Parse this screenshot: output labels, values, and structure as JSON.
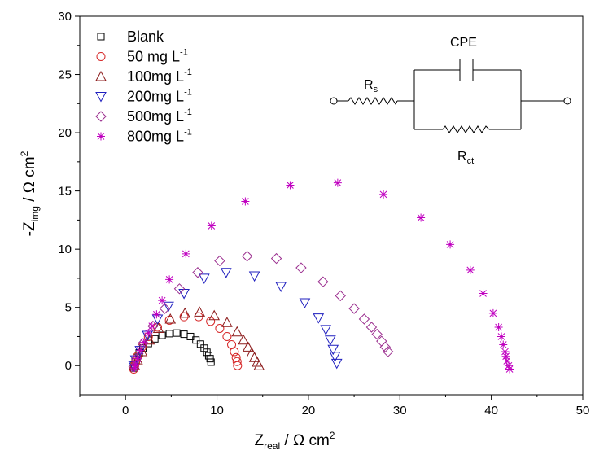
{
  "chart_data": {
    "type": "scatter",
    "title": "",
    "xlabel": {
      "main": "Z",
      "sub": "real",
      "unit": " / Ω cm",
      "sup": "2"
    },
    "ylabel": {
      "main": "-Z",
      "sub": "img",
      "unit": " / Ω cm",
      "sup": "2"
    },
    "xlim": [
      -5,
      50
    ],
    "ylim": [
      -2.5,
      30
    ],
    "xticks": [
      0,
      10,
      20,
      30,
      40,
      50
    ],
    "yticks": [
      0,
      5,
      10,
      15,
      20,
      25,
      30
    ],
    "grid": false,
    "legend_position": "top-left",
    "series": [
      {
        "name": "Blank",
        "unit": " L",
        "unit_sup": "",
        "marker": "square",
        "color": "#000000",
        "points": [
          [
            0.9,
            -0.2
          ],
          [
            0.95,
            0.1
          ],
          [
            1.05,
            0.35
          ],
          [
            1.2,
            0.7
          ],
          [
            1.5,
            1.1
          ],
          [
            1.9,
            1.5
          ],
          [
            2.5,
            1.9
          ],
          [
            3.2,
            2.3
          ],
          [
            4,
            2.6
          ],
          [
            4.8,
            2.75
          ],
          [
            5.6,
            2.8
          ],
          [
            6.4,
            2.7
          ],
          [
            7.1,
            2.5
          ],
          [
            7.7,
            2.2
          ],
          [
            8.2,
            1.85
          ],
          [
            8.6,
            1.5
          ],
          [
            8.9,
            1.15
          ],
          [
            9.1,
            0.85
          ],
          [
            9.25,
            0.6
          ],
          [
            9.35,
            0.3
          ]
        ]
      },
      {
        "name": "50 mg",
        "unit": " L",
        "unit_sup": "-1",
        "marker": "circle",
        "color": "#d62728",
        "points": [
          [
            0.9,
            -0.3
          ],
          [
            1,
            0
          ],
          [
            1.1,
            0.3
          ],
          [
            1.3,
            0.8
          ],
          [
            1.8,
            1.6
          ],
          [
            2.5,
            2.5
          ],
          [
            3.5,
            3.3
          ],
          [
            4.8,
            3.9
          ],
          [
            6.4,
            4.2
          ],
          [
            8,
            4.2
          ],
          [
            9.3,
            3.8
          ],
          [
            10.3,
            3.2
          ],
          [
            11.1,
            2.5
          ],
          [
            11.6,
            1.8
          ],
          [
            11.9,
            1.2
          ],
          [
            12.1,
            0.7
          ],
          [
            12.2,
            0.35
          ],
          [
            12.25,
            0
          ]
        ]
      },
      {
        "name": "100mg",
        "unit": " L",
        "unit_sup": "-1",
        "marker": "triangle-up",
        "color": "#8b1a1a",
        "points": [
          [
            1,
            0
          ],
          [
            1.3,
            0.5
          ],
          [
            1.8,
            1.2
          ],
          [
            2.6,
            2.2
          ],
          [
            3.6,
            3.2
          ],
          [
            4.9,
            4
          ],
          [
            6.5,
            4.5
          ],
          [
            8.1,
            4.6
          ],
          [
            9.7,
            4.3
          ],
          [
            11.1,
            3.7
          ],
          [
            12.2,
            2.9
          ],
          [
            12.9,
            2.2
          ],
          [
            13.4,
            1.6
          ],
          [
            13.8,
            1.1
          ],
          [
            14.1,
            0.7
          ],
          [
            14.4,
            0.3
          ],
          [
            14.6,
            0
          ]
        ]
      },
      {
        "name": "200mg",
        "unit": " L",
        "unit_sup": "-1",
        "marker": "triangle-down",
        "color": "#1f1fbf",
        "points": [
          [
            0.9,
            0
          ],
          [
            1.1,
            0.5
          ],
          [
            1.6,
            1.3
          ],
          [
            2.4,
            2.6
          ],
          [
            3.5,
            4
          ],
          [
            4.7,
            5.1
          ],
          [
            6.4,
            6.2
          ],
          [
            8.6,
            7.5
          ],
          [
            11,
            8
          ],
          [
            14.1,
            7.7
          ],
          [
            17,
            6.8
          ],
          [
            19.6,
            5.4
          ],
          [
            21.1,
            4.1
          ],
          [
            21.9,
            3.1
          ],
          [
            22.4,
            2.2
          ],
          [
            22.7,
            1.4
          ],
          [
            22.9,
            0.8
          ],
          [
            23.1,
            0.2
          ]
        ]
      },
      {
        "name": "500mg",
        "unit": " L",
        "unit_sup": "-1",
        "marker": "diamond",
        "color": "#9b2f8f",
        "points": [
          [
            0.9,
            -0.1
          ],
          [
            1.2,
            0.6
          ],
          [
            1.9,
            1.9
          ],
          [
            3,
            3.4
          ],
          [
            4.3,
            4.9
          ],
          [
            5.9,
            6.6
          ],
          [
            7.9,
            8
          ],
          [
            10.3,
            9
          ],
          [
            13.3,
            9.4
          ],
          [
            16.5,
            9.2
          ],
          [
            19.2,
            8.4
          ],
          [
            21.6,
            7.2
          ],
          [
            23.5,
            6
          ],
          [
            25,
            4.9
          ],
          [
            26.1,
            4
          ],
          [
            26.9,
            3.3
          ],
          [
            27.5,
            2.7
          ],
          [
            28,
            2.1
          ],
          [
            28.4,
            1.6
          ],
          [
            28.7,
            1.2
          ]
        ]
      },
      {
        "name": "800mg",
        "unit": " L",
        "unit_sup": "-1",
        "marker": "star",
        "color": "#c000c0",
        "points": [
          [
            1,
            -0.2
          ],
          [
            1.1,
            0.1
          ],
          [
            1.3,
            0.6
          ],
          [
            1.6,
            1.3
          ],
          [
            2,
            2
          ],
          [
            2.5,
            2.8
          ],
          [
            2.9,
            3.4
          ],
          [
            3.4,
            4.4
          ],
          [
            4,
            5.6
          ],
          [
            4.8,
            7.4
          ],
          [
            6.6,
            9.6
          ],
          [
            9.4,
            12
          ],
          [
            13.1,
            14.1
          ],
          [
            18,
            15.5
          ],
          [
            23.2,
            15.7
          ],
          [
            28.2,
            14.7
          ],
          [
            32.3,
            12.7
          ],
          [
            35.5,
            10.4
          ],
          [
            37.7,
            8.2
          ],
          [
            39.1,
            6.2
          ],
          [
            40.2,
            4.5
          ],
          [
            40.8,
            3.3
          ],
          [
            41.1,
            2.5
          ],
          [
            41.3,
            1.8
          ],
          [
            41.5,
            1.2
          ],
          [
            41.6,
            0.8
          ],
          [
            41.7,
            0.4
          ],
          [
            41.9,
            0
          ],
          [
            42,
            -0.3
          ]
        ]
      }
    ]
  },
  "circuit": {
    "rs_label": "R",
    "rs_sub": "s",
    "cpe_label": "CPE",
    "rct_label": "R",
    "rct_sub": "ct"
  }
}
